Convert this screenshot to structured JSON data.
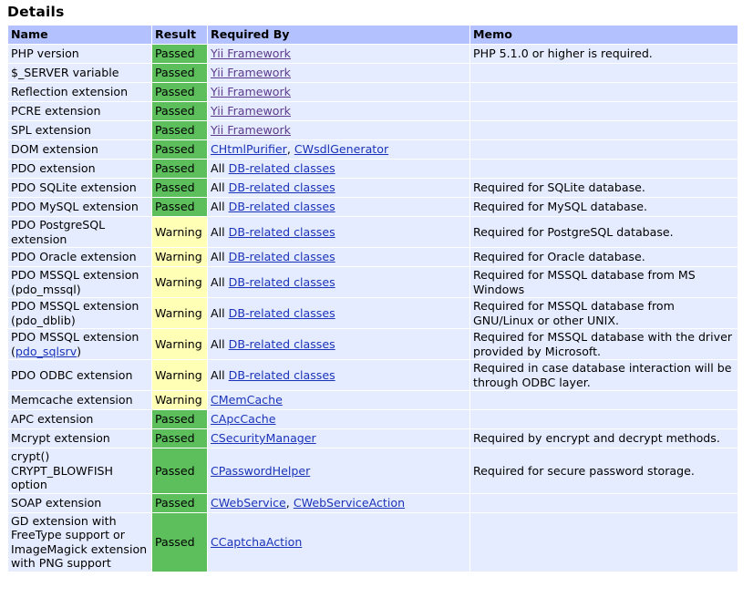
{
  "section_title": "Details",
  "columns": [
    "Name",
    "Result",
    "Required By",
    "Memo"
  ],
  "colors": {
    "header_bg": "#b3c2ff",
    "row_bg": "#e6ecff",
    "passed": "#5cbf5c",
    "warning": "#ffffb5",
    "link": "#1a33b8",
    "visited_link": "#5b3a8c"
  },
  "rows": [
    {
      "name": "PHP version",
      "result": "Passed",
      "prefix": "",
      "links": [
        {
          "text": "Yii Framework",
          "visited": true
        }
      ],
      "memo": "PHP 5.1.0 or higher is required."
    },
    {
      "name": "$_SERVER variable",
      "result": "Passed",
      "prefix": "",
      "links": [
        {
          "text": "Yii Framework",
          "visited": true
        }
      ],
      "memo": ""
    },
    {
      "name": "Reflection extension",
      "result": "Passed",
      "prefix": "",
      "links": [
        {
          "text": "Yii Framework",
          "visited": true
        }
      ],
      "memo": ""
    },
    {
      "name": "PCRE extension",
      "result": "Passed",
      "prefix": "",
      "links": [
        {
          "text": "Yii Framework",
          "visited": true
        }
      ],
      "memo": ""
    },
    {
      "name": "SPL extension",
      "result": "Passed",
      "prefix": "",
      "links": [
        {
          "text": "Yii Framework",
          "visited": true
        }
      ],
      "memo": ""
    },
    {
      "name": "DOM extension",
      "result": "Passed",
      "prefix": "",
      "links": [
        {
          "text": "CHtmlPurifier",
          "visited": false
        },
        {
          "text": "CWsdlGenerator",
          "visited": false
        }
      ],
      "memo": ""
    },
    {
      "name": "PDO extension",
      "result": "Passed",
      "prefix": "All",
      "links": [
        {
          "text": "DB-related classes",
          "visited": false
        }
      ],
      "memo": ""
    },
    {
      "name": "PDO SQLite extension",
      "result": "Passed",
      "prefix": "All",
      "links": [
        {
          "text": "DB-related classes",
          "visited": false
        }
      ],
      "memo": "Required for SQLite database."
    },
    {
      "name": "PDO MySQL extension",
      "result": "Passed",
      "prefix": "All",
      "links": [
        {
          "text": "DB-related classes",
          "visited": false
        }
      ],
      "memo": "Required for MySQL database."
    },
    {
      "name": "PDO PostgreSQL extension",
      "result": "Warning",
      "prefix": "All",
      "links": [
        {
          "text": "DB-related classes",
          "visited": false
        }
      ],
      "memo": "Required for PostgreSQL database."
    },
    {
      "name": "PDO Oracle extension",
      "result": "Warning",
      "prefix": "All",
      "links": [
        {
          "text": "DB-related classes",
          "visited": false
        }
      ],
      "memo": "Required for Oracle database."
    },
    {
      "name": "PDO MSSQL extension (pdo_mssql)",
      "result": "Warning",
      "prefix": "All",
      "links": [
        {
          "text": "DB-related classes",
          "visited": false
        }
      ],
      "memo": "Required for MSSQL database from MS Windows"
    },
    {
      "name": "PDO MSSQL extension (pdo_dblib)",
      "result": "Warning",
      "prefix": "All",
      "links": [
        {
          "text": "DB-related classes",
          "visited": false
        }
      ],
      "memo": "Required for MSSQL database from GNU/Linux or other UNIX."
    },
    {
      "name": "PDO MSSQL extension (",
      "name_link": "pdo_sqlsrv",
      "name_suffix": ")",
      "result": "Warning",
      "prefix": "All",
      "links": [
        {
          "text": "DB-related classes",
          "visited": false
        }
      ],
      "memo": "Required for MSSQL database with the driver provided by Microsoft."
    },
    {
      "name": "PDO ODBC extension",
      "result": "Warning",
      "prefix": "All",
      "links": [
        {
          "text": "DB-related classes",
          "visited": false
        }
      ],
      "memo": "Required in case database interaction will be through ODBC layer."
    },
    {
      "name": "Memcache extension",
      "result": "Warning",
      "prefix": "",
      "links": [
        {
          "text": "CMemCache",
          "visited": false
        }
      ],
      "memo": ""
    },
    {
      "name": "APC extension",
      "result": "Passed",
      "prefix": "",
      "links": [
        {
          "text": "CApcCache",
          "visited": false
        }
      ],
      "memo": ""
    },
    {
      "name": "Mcrypt extension",
      "result": "Passed",
      "prefix": "",
      "links": [
        {
          "text": "CSecurityManager",
          "visited": false
        }
      ],
      "memo": "Required by encrypt and decrypt methods."
    },
    {
      "name": "crypt() CRYPT_BLOWFISH option",
      "result": "Passed",
      "prefix": "",
      "links": [
        {
          "text": "CPasswordHelper",
          "visited": false
        }
      ],
      "memo": "Required for secure password storage."
    },
    {
      "name": "SOAP extension",
      "result": "Passed",
      "prefix": "",
      "links": [
        {
          "text": "CWebService",
          "visited": false
        },
        {
          "text": "CWebServiceAction",
          "visited": false
        }
      ],
      "memo": ""
    },
    {
      "name": "GD extension with FreeType support or ImageMagick extension with PNG support",
      "result": "Passed",
      "prefix": "",
      "links": [
        {
          "text": "CCaptchaAction",
          "visited": false
        }
      ],
      "memo": ""
    }
  ]
}
